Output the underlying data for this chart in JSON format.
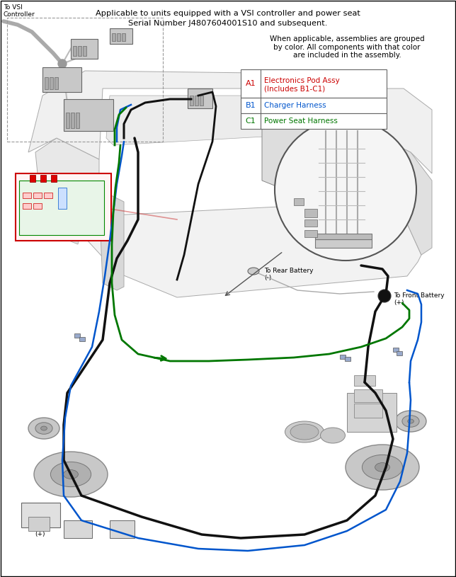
{
  "title_line1": "Applicable to units equipped with a VSI controller and power seat",
  "title_line2": "Serial Number J4807604001S10 and subsequent.",
  "subtitle": "When applicable, assemblies are grouped\nby color. All components with that color\nare included in the assembly.",
  "legend_items": [
    {
      "id": "A1",
      "text": "Electronics Pod Assy\n(Includes B1-C1)",
      "id_color": "#cc0000",
      "text_color": "#cc0000"
    },
    {
      "id": "B1",
      "text": "Charger Harness",
      "id_color": "#0055cc",
      "text_color": "#0055cc"
    },
    {
      "id": "C1",
      "text": "Power Seat Harness",
      "id_color": "#007700",
      "text_color": "#007700"
    }
  ],
  "vsi_label": "To VSI\nController",
  "rear_battery_label": "To Rear Battery\n(-)",
  "front_battery_label": "To Front Battery\n(+)",
  "bg_color": "#ffffff",
  "frame_color": "#aaaaaa",
  "red_color": "#cc0000",
  "blue_color": "#0055cc",
  "green_color": "#007700",
  "black_color": "#111111",
  "figsize": [
    6.44,
    8.15
  ],
  "dpi": 100
}
